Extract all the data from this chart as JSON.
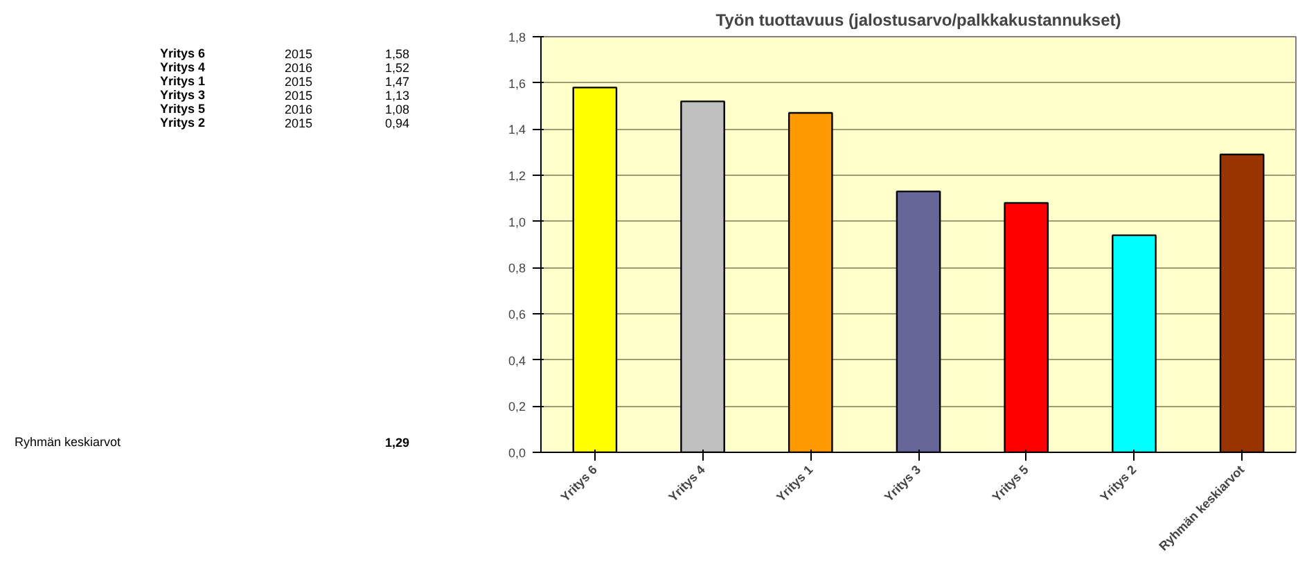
{
  "chart_data": {
    "type": "bar",
    "title": "Työn tuottavuus (jalostusarvo/palkkakustannukset)",
    "categories": [
      "Yritys 6",
      "Yritys 4",
      "Yritys 1",
      "Yritys 3",
      "Yritys 5",
      "Yritys 2",
      "Ryhmän keskiarvot"
    ],
    "values": [
      1.58,
      1.52,
      1.47,
      1.13,
      1.08,
      0.94,
      1.29
    ],
    "colors": [
      "#ffff00",
      "#c0c0c0",
      "#ff9900",
      "#666699",
      "#ff0000",
      "#00ffff",
      "#993300"
    ],
    "annotations": [
      "2015",
      "1,58",
      "2016",
      "1,52",
      "2015",
      "1,47",
      "2015",
      "1,13",
      "2016",
      "1,08",
      "2015",
      "0,94",
      "1,29"
    ],
    "ylim": [
      0,
      1.8
    ],
    "yticks": [
      {
        "value": 0,
        "label": "0,0"
      },
      {
        "value": 0.2,
        "label": "0,2"
      },
      {
        "value": 0.4,
        "label": "0,4"
      },
      {
        "value": 0.6,
        "label": "0,6"
      },
      {
        "value": 0.8,
        "label": "0,8"
      },
      {
        "value": 1.0,
        "label": "1,0"
      },
      {
        "value": 1.2,
        "label": "1,2"
      },
      {
        "value": 1.4,
        "label": "1,4"
      },
      {
        "value": 1.6,
        "label": "1,6"
      },
      {
        "value": 1.8,
        "label": "1,8"
      }
    ],
    "grid": "y"
  }
}
